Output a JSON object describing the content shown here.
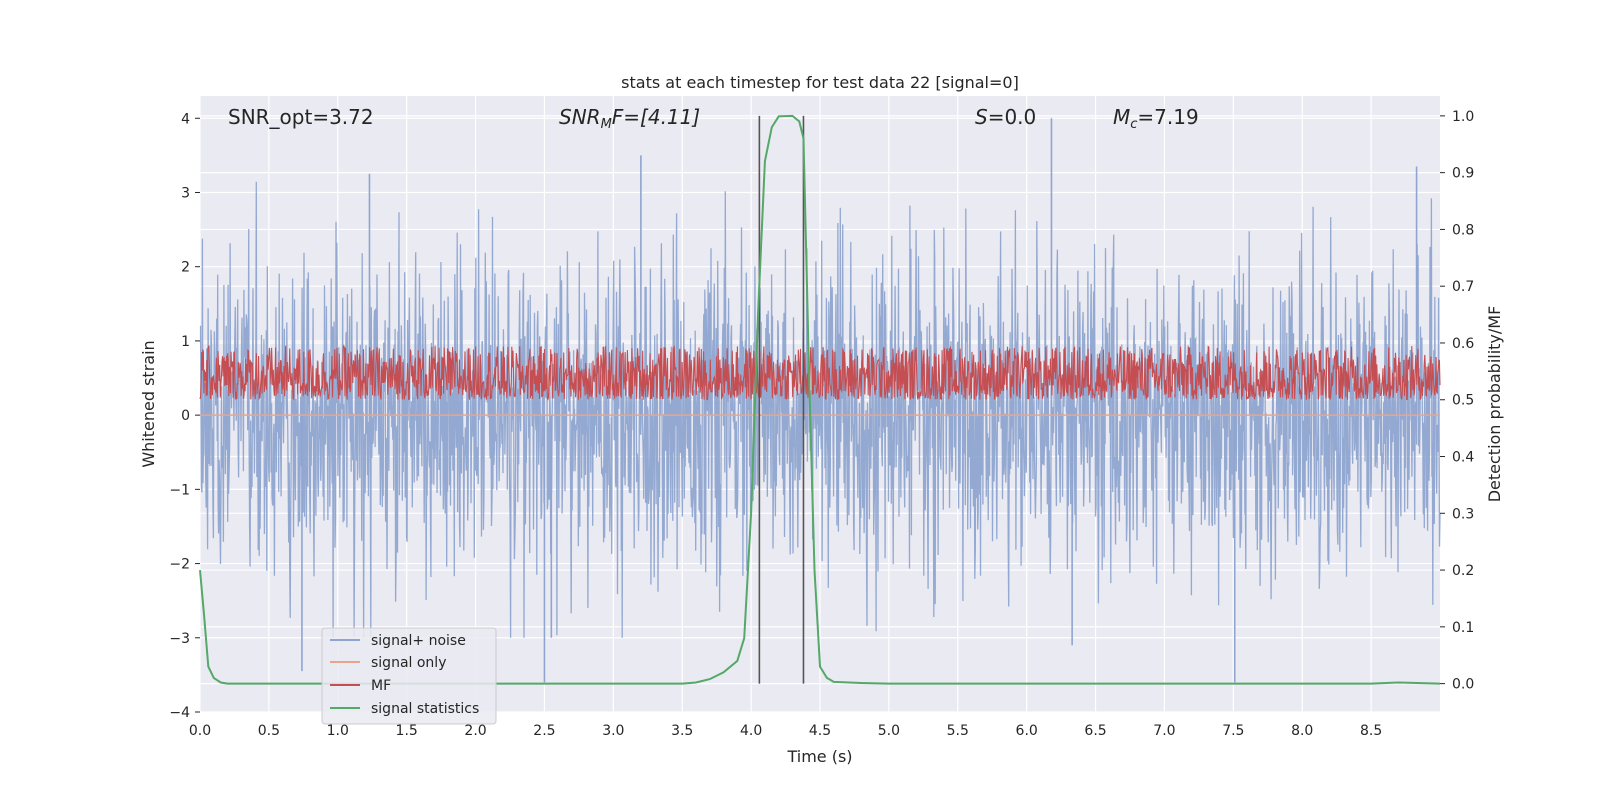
{
  "chart_data": {
    "type": "line",
    "title": "stats at each timestep for test data 22 [signal=0]",
    "xlabel": "Time (s)",
    "ylabel": "Whitened strain",
    "y2label": "Detection probability/MF",
    "xlim": [
      0.0,
      9.0
    ],
    "ylim": [
      -4.0,
      4.3
    ],
    "y2lim": [
      -0.05,
      1.035
    ],
    "x_ticks": [
      0.0,
      0.5,
      1.0,
      1.5,
      2.0,
      2.5,
      3.0,
      3.5,
      4.0,
      4.5,
      5.0,
      5.5,
      6.0,
      6.5,
      7.0,
      7.5,
      8.0,
      8.5
    ],
    "x_tick_labels": [
      "0.0",
      "0.5",
      "1.0",
      "1.5",
      "2.0",
      "2.5",
      "3.0",
      "3.5",
      "4.0",
      "4.5",
      "5.0",
      "5.5",
      "6.0",
      "6.5",
      "7.0",
      "7.5",
      "8.0",
      "8.5"
    ],
    "y_ticks": [
      -4,
      -3,
      -2,
      -1,
      0,
      1,
      2,
      3,
      4
    ],
    "y_tick_labels": [
      "−4",
      "−3",
      "−2",
      "−1",
      "0",
      "1",
      "2",
      "3",
      "4"
    ],
    "y2_ticks": [
      0.0,
      0.1,
      0.2,
      0.3,
      0.4,
      0.5,
      0.6,
      0.7,
      0.8,
      0.9,
      1.0
    ],
    "y2_tick_labels": [
      "0.0",
      "0.1",
      "0.2",
      "0.3",
      "0.4",
      "0.5",
      "0.6",
      "0.7",
      "0.8",
      "0.9",
      "1.0"
    ],
    "grid": true,
    "legend_position": "lower-left",
    "annotations": {
      "snr_opt": "SNR_opt=3.72",
      "snr_mf_sym": "SNR",
      "snr_mf_sub": "M",
      "snr_mf_rest": "F=[4.11]",
      "s_sym": "S",
      "s_rest": "=0.0",
      "mc_sym": "M",
      "mc_sub": "c",
      "mc_rest": "=7.19"
    },
    "vertical_lines_x": [
      4.06,
      4.38
    ],
    "series": [
      {
        "name": "signal+ noise",
        "color": "#8fa5cf",
        "axis": "left",
        "noise_sigma": 1.0,
        "peak_max": 4.0,
        "peak_min": -3.6,
        "spikes": [
          {
            "x": 1.23,
            "y": 3.25
          },
          {
            "x": 3.2,
            "y": 3.5
          },
          {
            "x": 6.18,
            "y": 4.0
          },
          {
            "x": 8.83,
            "y": 3.35
          },
          {
            "x": 0.74,
            "y": -3.45
          },
          {
            "x": 2.5,
            "y": -3.6
          },
          {
            "x": 6.33,
            "y": -3.1
          },
          {
            "x": 7.51,
            "y": -3.6
          },
          {
            "x": 2.55,
            "y": -3.0
          }
        ]
      },
      {
        "name": "signal only",
        "color": "#e8a58c",
        "axis": "left",
        "values_constant": 0.0
      },
      {
        "name": "MF",
        "color": "#c44e52",
        "axis": "right",
        "band": [
          0.5,
          0.595
        ]
      },
      {
        "name": "signal statistics",
        "color": "#55a868",
        "axis": "right",
        "x": [
          0.0,
          0.03,
          0.06,
          0.1,
          0.15,
          0.2,
          0.3,
          0.5,
          1.0,
          2.0,
          3.0,
          3.5,
          3.6,
          3.7,
          3.8,
          3.9,
          3.95,
          4.0,
          4.05,
          4.1,
          4.15,
          4.2,
          4.3,
          4.35,
          4.38,
          4.42,
          4.46,
          4.5,
          4.55,
          4.6,
          4.8,
          5.0,
          6.0,
          7.0,
          8.0,
          8.5,
          8.7,
          9.0
        ],
        "y": [
          0.2,
          0.12,
          0.03,
          0.01,
          0.002,
          0.0,
          0.0,
          0.0,
          0.0,
          0.0,
          0.0,
          0.0,
          0.002,
          0.008,
          0.02,
          0.04,
          0.08,
          0.3,
          0.65,
          0.92,
          0.98,
          0.999,
          1.0,
          0.99,
          0.96,
          0.55,
          0.2,
          0.03,
          0.01,
          0.003,
          0.001,
          0.0,
          0.0,
          0.0,
          0.0,
          0.0,
          0.002,
          0.0
        ]
      }
    ]
  }
}
